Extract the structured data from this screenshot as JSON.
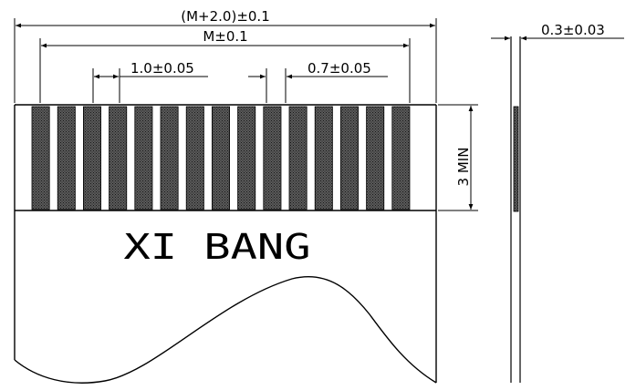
{
  "brand_text": "XI BANG",
  "dimensions": {
    "overall_width": "(M+2.0)±0.1",
    "contact_span": "M±0.1",
    "pitch": "1.0±0.05",
    "contact_width": "0.7±0.05",
    "contact_length": "3 MIN",
    "thickness": "0.3±0.03"
  },
  "contacts": {
    "count": 15
  },
  "colors": {
    "line": "#000000",
    "contact_fill": "#3a3a3a",
    "background": "#ffffff"
  }
}
